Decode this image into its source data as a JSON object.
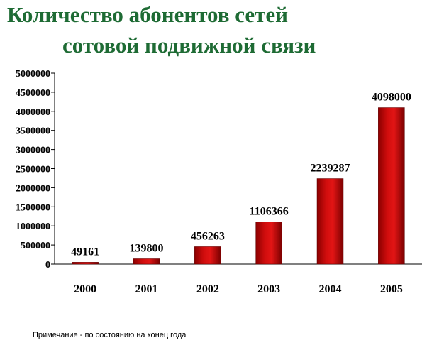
{
  "title_line1": "Количество абонентов сетей",
  "title_line2": "сотовой подвижной связи",
  "note": "Примечание - по состоянию на конец года",
  "colors": {
    "title": "#1e6b34",
    "bar": "#d10d0d",
    "bar_dark": "#7a0000"
  },
  "chart_data": {
    "type": "bar",
    "categories": [
      "2000",
      "2001",
      "2002",
      "2003",
      "2004",
      "2005"
    ],
    "values": [
      49161,
      139800,
      456263,
      1106366,
      2239287,
      4098000
    ],
    "data_labels": [
      "49161",
      "139800",
      "456263",
      "1106366",
      "2239287",
      "4098000"
    ],
    "ylim": [
      0,
      5000000
    ],
    "yticks": [
      0,
      500000,
      1000000,
      1500000,
      2000000,
      2500000,
      3000000,
      3500000,
      4000000,
      4500000,
      5000000
    ],
    "ytick_labels": [
      "0",
      "500000",
      "1000000",
      "1500000",
      "2000000",
      "2500000",
      "3000000",
      "3500000",
      "4000000",
      "4500000",
      "5000000"
    ],
    "grid": false,
    "title": "Количество абонентов сетей сотовой подвижной связи",
    "xlabel": "",
    "ylabel": ""
  }
}
